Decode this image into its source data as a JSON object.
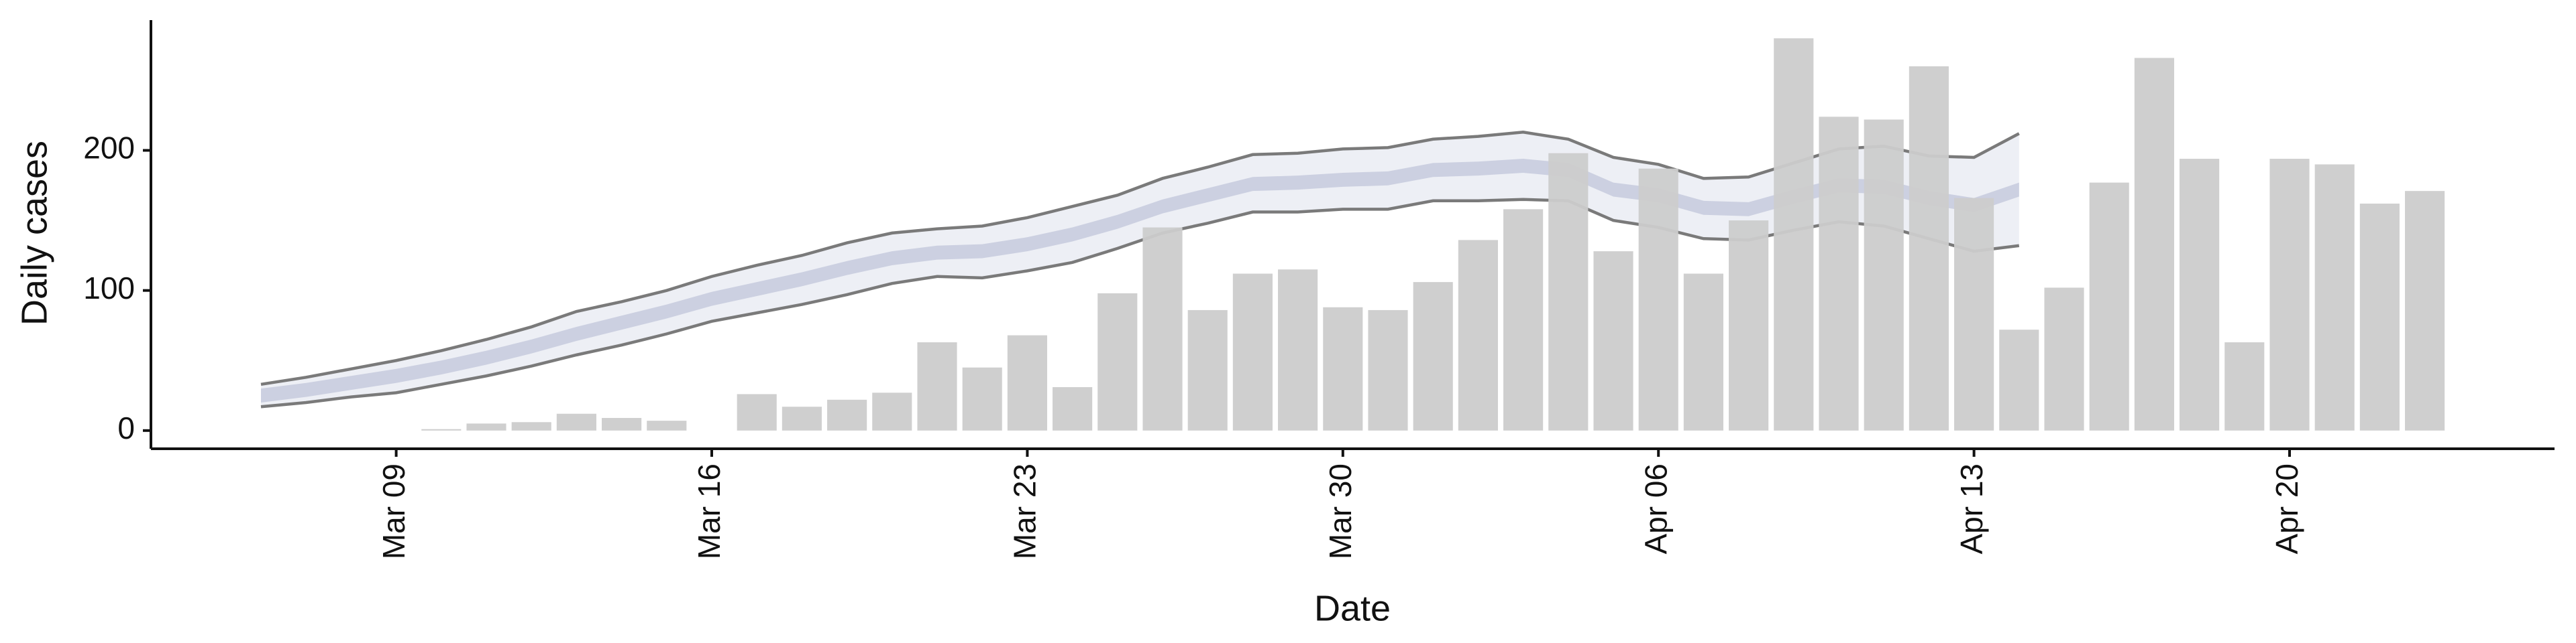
{
  "chart_data": {
    "type": "bar",
    "x_label": "Date",
    "y_label": "Daily cases",
    "x": [
      "Mar 06",
      "Mar 07",
      "Mar 08",
      "Mar 09",
      "Mar 10",
      "Mar 11",
      "Mar 12",
      "Mar 13",
      "Mar 14",
      "Mar 15",
      "Mar 16",
      "Mar 17",
      "Mar 18",
      "Mar 19",
      "Mar 20",
      "Mar 21",
      "Mar 22",
      "Mar 23",
      "Mar 24",
      "Mar 25",
      "Mar 26",
      "Mar 27",
      "Mar 28",
      "Mar 29",
      "Mar 30",
      "Mar 31",
      "Apr 01",
      "Apr 02",
      "Apr 03",
      "Apr 04",
      "Apr 05",
      "Apr 06",
      "Apr 07",
      "Apr 08",
      "Apr 09",
      "Apr 10",
      "Apr 11",
      "Apr 12",
      "Apr 13",
      "Apr 14",
      "Apr 15",
      "Apr 16",
      "Apr 17",
      "Apr 18",
      "Apr 19",
      "Apr 20",
      "Apr 21",
      "Apr 22",
      "Apr 23"
    ],
    "values": [
      null,
      null,
      null,
      null,
      1,
      5,
      6,
      12,
      9,
      7,
      null,
      26,
      17,
      22,
      27,
      63,
      45,
      68,
      31,
      98,
      145,
      86,
      112,
      115,
      88,
      86,
      106,
      136,
      158,
      198,
      128,
      187,
      112,
      150,
      280,
      224,
      222,
      260,
      166,
      72,
      102,
      177,
      266,
      194,
      63,
      194,
      190,
      162,
      171
    ],
    "color": "#cccccc",
    "bands": [
      {
        "color": "#eaecf3",
        "upper": [
          33,
          38,
          44,
          50,
          57,
          65,
          74,
          85,
          92,
          100,
          110,
          118,
          125,
          134,
          141,
          144,
          146,
          152,
          160,
          168,
          180,
          188,
          197,
          198,
          201,
          202,
          208,
          210,
          213,
          208,
          195,
          190,
          180,
          181,
          191,
          201,
          203,
          196,
          195,
          212,
          null,
          null,
          null,
          null,
          null,
          null,
          null,
          null,
          null
        ],
        "lower": [
          17,
          20,
          24,
          27,
          33,
          39,
          46,
          54,
          61,
          69,
          78,
          84,
          90,
          97,
          105,
          110,
          109,
          114,
          120,
          130,
          141,
          148,
          156,
          156,
          158,
          158,
          164,
          164,
          165,
          164,
          150,
          145,
          137,
          136,
          143,
          149,
          146,
          137,
          128,
          132,
          null,
          null,
          null,
          null,
          null,
          null,
          null,
          null,
          null
        ]
      },
      {
        "color": "#c5cadd",
        "upper": [
          30,
          34,
          39,
          44,
          50,
          57,
          65,
          74,
          82,
          90,
          99,
          106,
          113,
          121,
          128,
          132,
          133,
          138,
          145,
          154,
          165,
          173,
          181,
          182,
          184,
          185,
          191,
          192,
          194,
          191,
          177,
          173,
          164,
          163,
          172,
          180,
          179,
          171,
          166,
          177,
          null,
          null,
          null,
          null,
          null,
          null,
          null,
          null,
          null
        ],
        "lower": [
          20,
          24,
          29,
          34,
          40,
          47,
          55,
          64,
          72,
          80,
          89,
          96,
          103,
          111,
          118,
          122,
          123,
          128,
          135,
          144,
          155,
          163,
          171,
          172,
          174,
          175,
          181,
          182,
          184,
          181,
          167,
          163,
          154,
          153,
          162,
          170,
          169,
          161,
          156,
          167,
          null,
          null,
          null,
          null,
          null,
          null,
          null,
          null,
          null
        ]
      }
    ],
    "band_line_color": "#7a7a7a",
    "xticks": [
      "Mar 09",
      "Mar 16",
      "Mar 23",
      "Mar 30",
      "Apr 06",
      "Apr 13",
      "Apr 20"
    ],
    "ylim": [
      -13,
      293
    ],
    "yticks": [
      0,
      100,
      200
    ],
    "grid": false
  }
}
